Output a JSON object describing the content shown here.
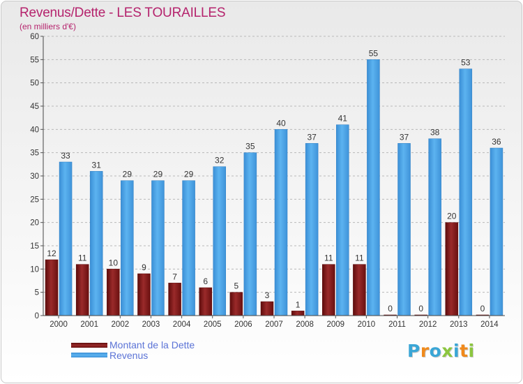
{
  "title": "Revenus/Dette - LES TOURAILLES",
  "subtitle": "(en milliers d'€)",
  "logo": {
    "letters": [
      "P",
      "r",
      "o",
      "x",
      "i",
      "t",
      "i"
    ],
    "colors": [
      "#3aa6d6",
      "#f08a1c",
      "#3aa6d6",
      "#8cc63f",
      "#3aa6d6",
      "#f08a1c",
      "#8cc63f"
    ]
  },
  "chart_data": {
    "type": "bar",
    "title": "Revenus/Dette - LES TOURAILLES",
    "ylabel": "(en milliers d'€)",
    "ylim": [
      0,
      60
    ],
    "yticks": [
      0,
      5,
      10,
      15,
      20,
      25,
      30,
      35,
      40,
      45,
      50,
      55,
      60
    ],
    "grid": true,
    "legend_position": "bottom-left",
    "categories": [
      "2000",
      "2001",
      "2002",
      "2003",
      "2004",
      "2005",
      "2006",
      "2007",
      "2008",
      "2009",
      "2010",
      "2011",
      "2012",
      "2013",
      "2014"
    ],
    "series": [
      {
        "name": "Montant de la Dette",
        "color": "#8b1c1c",
        "values": [
          12,
          11,
          10,
          9,
          7,
          6,
          5,
          3,
          1,
          11,
          11,
          0,
          0,
          20,
          0
        ]
      },
      {
        "name": "Revenus",
        "color": "#4aa3e6",
        "values": [
          33,
          31,
          29,
          29,
          29,
          32,
          35,
          40,
          37,
          41,
          55,
          37,
          38,
          53,
          36
        ]
      }
    ]
  }
}
